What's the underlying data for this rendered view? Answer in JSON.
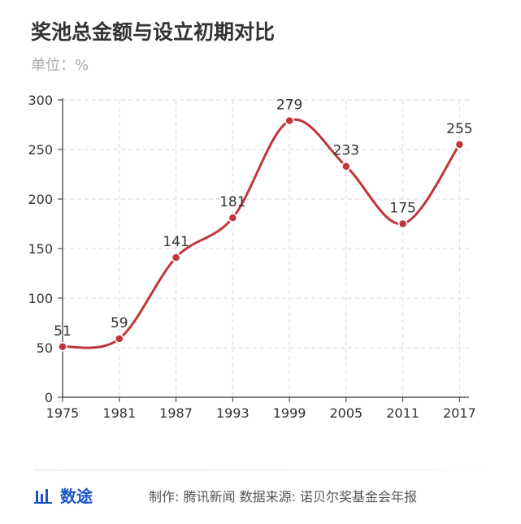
{
  "chart_data": {
    "type": "line",
    "title": "奖池总金额与设立初期对比",
    "subtitle": "单位：%",
    "x": [
      1975,
      1981,
      1987,
      1993,
      1999,
      2005,
      2011,
      2017
    ],
    "series": [
      {
        "values": [
          51,
          59,
          141,
          181,
          279,
          233,
          175,
          255
        ]
      }
    ],
    "data_labels": [
      "51",
      "59",
      "141",
      "181",
      "279",
      "233",
      "175",
      "255"
    ],
    "x_ticks": [
      "1975",
      "1981",
      "1987",
      "1993",
      "1999",
      "2005",
      "2011",
      "2017"
    ],
    "y_ticks": [
      "0",
      "50",
      "100",
      "150",
      "200",
      "250",
      "300"
    ],
    "xlim": [
      1975,
      2018
    ],
    "ylim": [
      0,
      300
    ],
    "grid": true,
    "line_color": "#c0363a"
  },
  "footer": {
    "brand": "数途",
    "credit": "制作: 腾讯新闻  数据来源: 诺贝尔奖基金会年报"
  }
}
